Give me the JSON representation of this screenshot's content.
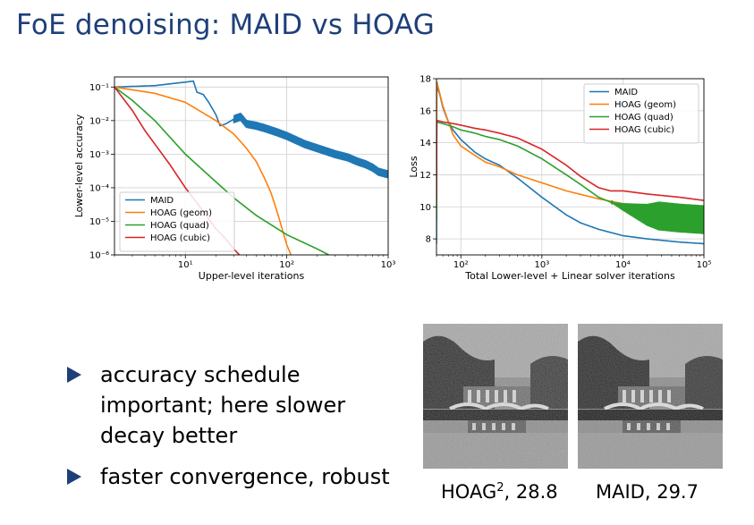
{
  "slide": {
    "title": "FoE denoising: MAID vs HOAG",
    "bullets": [
      "accuracy schedule important; here slower decay better",
      "faster convergence, robust"
    ],
    "images": [
      {
        "caption_base": "HOAG",
        "caption_sup": "2",
        "caption_rest": ", 28.8"
      },
      {
        "caption_base": "MAID",
        "caption_sup": "",
        "caption_rest": ", 29.7"
      }
    ]
  },
  "chart_data": [
    {
      "type": "line",
      "xlabel": "Upper-level iterations",
      "ylabel": "Lower-level accuracy",
      "xscale": "log",
      "yscale": "log",
      "xlim": [
        2,
        1000
      ],
      "ylim": [
        1e-06,
        0.2
      ],
      "xticks": [
        "10¹",
        "10²",
        "10³"
      ],
      "yticks": [
        "10⁻⁶",
        "10⁻⁵",
        "10⁻⁴",
        "10⁻³",
        "10⁻²",
        "10⁻¹"
      ],
      "grid": true,
      "legend": "lower-left",
      "series": [
        {
          "name": "MAID",
          "color": "#1f77b4",
          "x": [
            2,
            5,
            8,
            10,
            12,
            13,
            15,
            17,
            20,
            22,
            25,
            30,
            35,
            40,
            50,
            60,
            80,
            100,
            150,
            200,
            300,
            400,
            500,
            600,
            700,
            800,
            1000
          ],
          "y": [
            0.1,
            0.11,
            0.13,
            0.14,
            0.15,
            0.07,
            0.06,
            0.035,
            0.015,
            0.007,
            0.008,
            0.011,
            0.013,
            0.008,
            0.007,
            0.006,
            0.0045,
            0.0035,
            0.002,
            0.0015,
            0.001,
            0.0008,
            0.0006,
            0.0005,
            0.0004,
            0.0003,
            0.00025
          ],
          "oscillating_from_x": 30
        },
        {
          "name": "HOAG (geom)",
          "color": "#ff7f0e",
          "x": [
            2,
            5,
            10,
            20,
            30,
            40,
            50,
            60,
            70,
            80,
            90,
            100,
            110,
            120
          ],
          "y": [
            0.1,
            0.065,
            0.035,
            0.01,
            0.004,
            0.0015,
            0.0006,
            0.0002,
            7e-05,
            2e-05,
            6e-06,
            2e-06,
            1e-06,
            5e-07
          ]
        },
        {
          "name": "HOAG (quad)",
          "color": "#2ca02c",
          "x": [
            2,
            3,
            5,
            10,
            20,
            30,
            50,
            100,
            200,
            300,
            350
          ],
          "y": [
            0.1,
            0.04,
            0.01,
            0.001,
            0.00015,
            5e-05,
            1.5e-05,
            4e-06,
            1.5e-06,
            8e-07,
            6e-07
          ]
        },
        {
          "name": "HOAG (cubic)",
          "color": "#d62728",
          "x": [
            2,
            3,
            4,
            5,
            7,
            10,
            15,
            20,
            25,
            30,
            40
          ],
          "y": [
            0.1,
            0.02,
            0.005,
            0.002,
            0.0005,
            0.0001,
            2e-05,
            6e-06,
            3e-06,
            1.5e-06,
            6e-07
          ]
        }
      ]
    },
    {
      "type": "line",
      "xlabel": "Total Lower-level + Linear solver iterations",
      "ylabel": "Loss",
      "xscale": "log",
      "yscale": "linear",
      "xlim": [
        50,
        100000
      ],
      "ylim": [
        7,
        18
      ],
      "xticks": [
        "10²",
        "10³",
        "10⁴",
        "10⁵"
      ],
      "yticks": [
        "8",
        "10",
        "12",
        "14",
        "16",
        "18"
      ],
      "grid": true,
      "legend": "upper-right",
      "series": [
        {
          "name": "MAID",
          "color": "#1f77b4",
          "x": [
            50,
            55,
            60,
            70,
            80,
            100,
            150,
            200,
            300,
            500,
            1000,
            2000,
            3000,
            5000,
            10000,
            20000,
            50000,
            100000
          ],
          "y": [
            17.6,
            17.0,
            16.2,
            15.3,
            14.8,
            14.2,
            13.4,
            13.0,
            12.6,
            11.8,
            10.6,
            9.5,
            9.0,
            8.6,
            8.2,
            8.0,
            7.8,
            7.7
          ]
        },
        {
          "name": "HOAG (geom)",
          "color": "#ff7f0e",
          "x": [
            50,
            60,
            80,
            100,
            150,
            200,
            300,
            500,
            1000,
            2000,
            5000,
            10000,
            20000,
            50000,
            100000
          ],
          "y": [
            17.9,
            16.3,
            14.5,
            13.8,
            13.2,
            12.8,
            12.5,
            12.0,
            11.5,
            11.0,
            10.5,
            10.2,
            10.0,
            9.9,
            9.9
          ]
        },
        {
          "name": "HOAG (quad)",
          "color": "#2ca02c",
          "x": [
            50,
            60,
            80,
            100,
            150,
            200,
            300,
            500,
            1000,
            2000,
            3000,
            5000,
            7000,
            10000,
            20000,
            50000,
            100000
          ],
          "y": [
            15.3,
            15.2,
            15.0,
            14.8,
            14.6,
            14.4,
            14.2,
            13.8,
            13.0,
            12.0,
            11.4,
            10.6,
            10.3,
            10.0,
            9.5,
            9.3,
            9.2
          ],
          "oscillating_from_x": 7000
        },
        {
          "name": "HOAG (cubic)",
          "color": "#d62728",
          "x": [
            50,
            60,
            80,
            100,
            150,
            200,
            300,
            500,
            1000,
            2000,
            3000,
            5000,
            7000,
            10000,
            20000,
            50000,
            100000
          ],
          "y": [
            15.4,
            15.3,
            15.2,
            15.1,
            14.9,
            14.8,
            14.6,
            14.3,
            13.6,
            12.6,
            11.9,
            11.2,
            11.0,
            11.0,
            10.8,
            10.6,
            10.4
          ]
        }
      ]
    }
  ]
}
